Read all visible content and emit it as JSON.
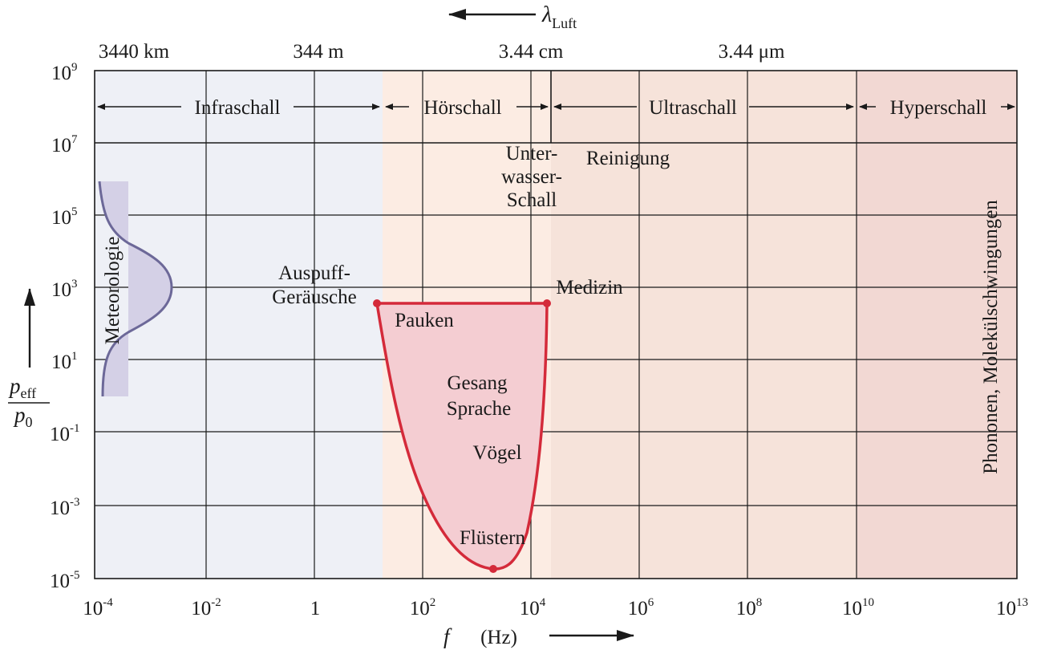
{
  "chart_data": {
    "type": "region-diagram",
    "x_axis": {
      "variable": "f",
      "unit": "(Hz)",
      "scale": "log",
      "tick_labels": [
        {
          "base": "10",
          "exp": "-4"
        },
        {
          "base": "10",
          "exp": "-2"
        },
        {
          "base": "1",
          "exp": ""
        },
        {
          "base": "10",
          "exp": "2"
        },
        {
          "base": "10",
          "exp": "4"
        },
        {
          "base": "10",
          "exp": "6"
        },
        {
          "base": "10",
          "exp": "8"
        },
        {
          "base": "10",
          "exp": "10"
        },
        {
          "base": "10",
          "exp": "13"
        }
      ]
    },
    "y_axis": {
      "numerator_base": "p",
      "numerator_sub": "eff",
      "denominator_base": "p",
      "denominator_sub": "0",
      "scale": "log",
      "tick_labels": [
        {
          "base": "10",
          "exp": "9"
        },
        {
          "base": "10",
          "exp": "7"
        },
        {
          "base": "10",
          "exp": "5"
        },
        {
          "base": "10",
          "exp": "3"
        },
        {
          "base": "10",
          "exp": "1"
        },
        {
          "base": "10",
          "exp": "-1"
        },
        {
          "base": "10",
          "exp": "-3"
        },
        {
          "base": "10",
          "exp": "-5"
        }
      ]
    },
    "wavelength_axis": {
      "symbol": "λ",
      "subscript": "Luft",
      "labels": [
        "3440 km",
        "344 m",
        "3.44 cm",
        "3.44 μm"
      ]
    },
    "regions": [
      {
        "name": "Infraschall",
        "color": "#eef0f6"
      },
      {
        "name": "Hörschall",
        "color": "#fcece3"
      },
      {
        "name": "Ultraschall",
        "color": "#f6e3da"
      },
      {
        "name": "Hyperschall",
        "color": "#f2d8d3"
      }
    ],
    "annotations": {
      "meteorologie": "Meteorologie",
      "auspuff": [
        "Auspuff-",
        "Geräusche"
      ],
      "pauken": "Pauken",
      "medizin": "Medizin",
      "unterwasser": [
        "Unter-",
        "wasser-",
        "Schall"
      ],
      "reinigung": "Reinigung",
      "gesang": [
        "Gesang",
        "Sprache"
      ],
      "voegel": "Vögel",
      "fluestern": "Flüstern",
      "phononen": "Phononen, Molekülschwingungen"
    },
    "colors": {
      "hearing_outline": "#d42a3a",
      "hearing_fill": "#f4cdd2",
      "meteo_outline": "#6c6898",
      "meteo_fill": "#d4d0e6"
    },
    "grid": true
  }
}
